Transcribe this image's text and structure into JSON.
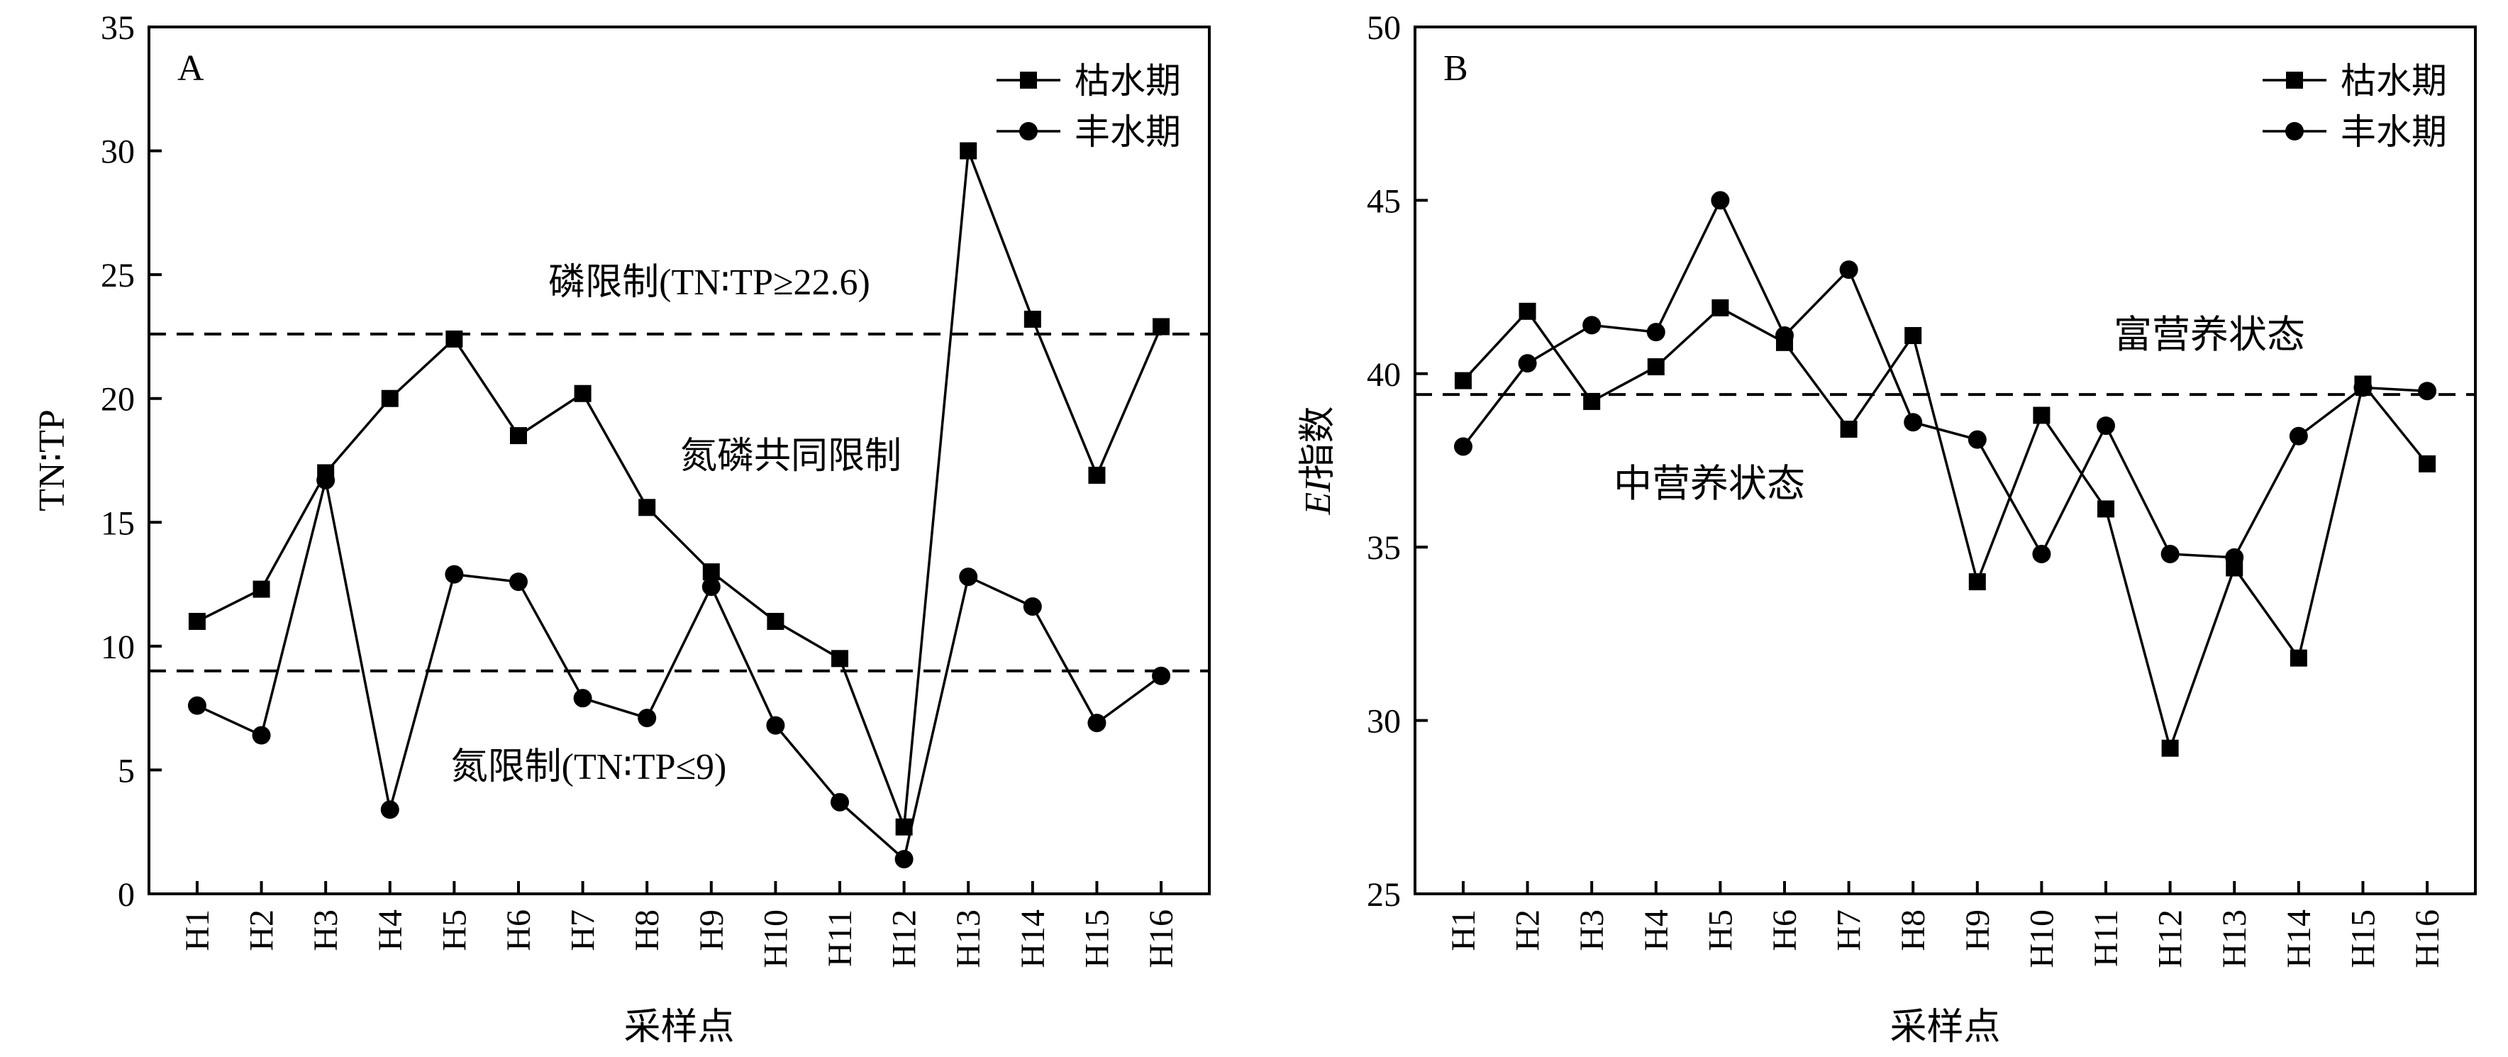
{
  "chart_data": [
    {
      "type": "line",
      "panel_label": "A",
      "xlabel": "采样点",
      "ylabel": "TN∶TP",
      "ylim": [
        0,
        35
      ],
      "yticks": [
        "0",
        "5",
        "10",
        "15",
        "20",
        "25",
        "30",
        "35"
      ],
      "categories": [
        "H1",
        "H2",
        "H3",
        "H4",
        "H5",
        "H6",
        "H7",
        "H8",
        "H9",
        "H10",
        "H11",
        "H12",
        "H13",
        "H14",
        "H15",
        "H16"
      ],
      "series": [
        {
          "name": "枯水期",
          "marker": "square",
          "values": [
            11.0,
            12.3,
            17.0,
            20.0,
            22.4,
            18.5,
            20.2,
            15.6,
            13.0,
            11.0,
            9.5,
            2.7,
            30.0,
            23.2,
            16.9,
            22.9
          ]
        },
        {
          "name": "丰水期",
          "marker": "circle",
          "values": [
            7.6,
            6.4,
            16.7,
            3.4,
            12.9,
            12.6,
            7.9,
            7.1,
            12.4,
            6.8,
            3.7,
            1.4,
            12.8,
            11.6,
            6.9,
            8.8
          ]
        }
      ],
      "reference_lines": [
        {
          "y": 22.6
        },
        {
          "y": 9
        }
      ],
      "annotations": [
        "磷限制(TN∶TP≥22.6)",
        "氮磷共同限制",
        "氮限制(TN∶TP≤9)"
      ],
      "legend_position": "top-right",
      "grid": false
    },
    {
      "type": "line",
      "panel_label": "B",
      "xlabel": "采样点",
      "ylabel_italic": "EI",
      "ylabel_rest": "指数",
      "ylim": [
        25,
        50
      ],
      "yticks": [
        "25",
        "30",
        "35",
        "40",
        "45",
        "50"
      ],
      "categories": [
        "H1",
        "H2",
        "H3",
        "H4",
        "H5",
        "H6",
        "H7",
        "H8",
        "H9",
        "H10",
        "H11",
        "H12",
        "H13",
        "H14",
        "H15",
        "H16"
      ],
      "series": [
        {
          "name": "枯水期",
          "marker": "square",
          "values": [
            39.8,
            41.8,
            39.2,
            40.2,
            41.9,
            40.9,
            38.4,
            41.1,
            34.0,
            38.8,
            36.1,
            29.2,
            34.4,
            31.8,
            39.7,
            37.4
          ]
        },
        {
          "name": "丰水期",
          "marker": "circle",
          "values": [
            37.9,
            40.3,
            41.4,
            41.2,
            45.0,
            41.1,
            43.0,
            38.6,
            38.1,
            34.8,
            38.5,
            34.8,
            34.7,
            38.2,
            39.6,
            39.5
          ]
        }
      ],
      "reference_lines": [
        {
          "y": 39.4
        }
      ],
      "annotations": [
        "富营养状态",
        "中营养状态"
      ],
      "legend_position": "top-right",
      "grid": false
    }
  ]
}
